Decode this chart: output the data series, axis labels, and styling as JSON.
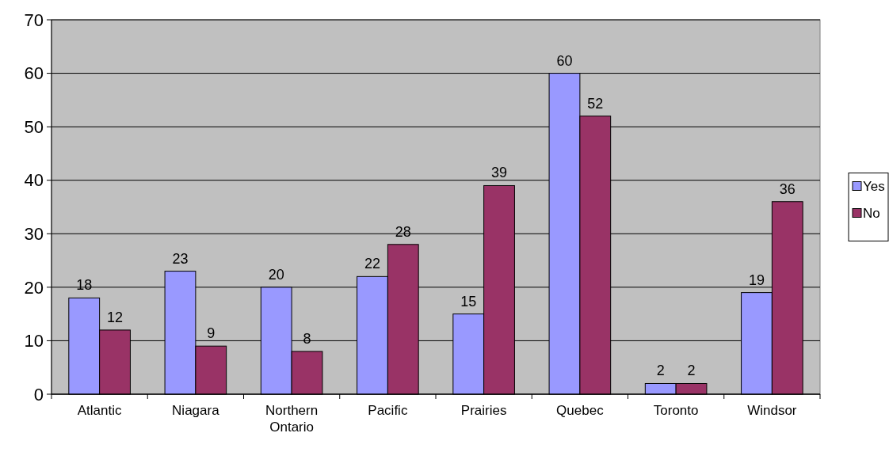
{
  "chart_data": {
    "type": "bar",
    "categories": [
      "Atlantic",
      "Niagara",
      "Northern Ontario",
      "Pacific",
      "Prairies",
      "Quebec",
      "Toronto",
      "Windsor"
    ],
    "series": [
      {
        "name": "Yes",
        "color": "#9999ff",
        "values": [
          18,
          23,
          20,
          22,
          15,
          60,
          2,
          19
        ]
      },
      {
        "name": "No",
        "color": "#993366",
        "values": [
          12,
          9,
          8,
          28,
          39,
          52,
          2,
          36
        ]
      }
    ],
    "ylim": [
      0,
      70
    ],
    "yticks": [
      0,
      10,
      20,
      30,
      40,
      50,
      60,
      70
    ],
    "grid": "y",
    "legend": "right",
    "data_labels": true
  }
}
